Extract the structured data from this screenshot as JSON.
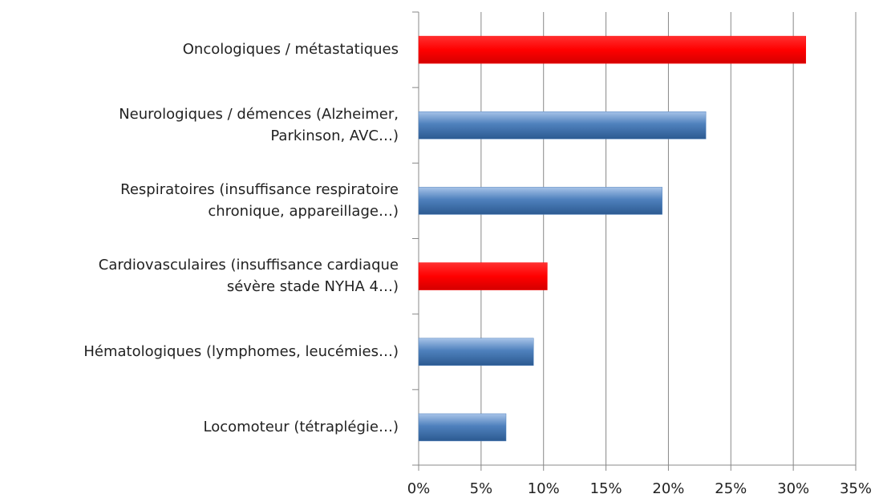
{
  "chart_data": {
    "type": "hbar",
    "categories": [
      [
        "Oncologiques / métastatiques"
      ],
      [
        "Neurologiques / démences (Alzheimer,",
        "Parkinson, AVC…)"
      ],
      [
        "Respiratoires (insuffisance respiratoire",
        "chronique, appareillage…)"
      ],
      [
        "Cardiovasculaires (insuffisance cardiaque",
        "sévère stade NYHA 4…)"
      ],
      [
        "Hématologiques (lymphomes, leucémies…)"
      ],
      [
        "Locomoteur (tétraplégie…)"
      ]
    ],
    "values": [
      31,
      23,
      19.5,
      10.3,
      9.2,
      7
    ],
    "colors": [
      "#ff0000",
      "#4f81bd",
      "#4f81bd",
      "#ff0000",
      "#4f81bd",
      "#4f81bd"
    ],
    "xlim": [
      0,
      35
    ],
    "xticks": [
      {
        "value": 0,
        "label": "0%"
      },
      {
        "value": 5,
        "label": "5%"
      },
      {
        "value": 10,
        "label": "10%"
      },
      {
        "value": 15,
        "label": "15%"
      },
      {
        "value": 20,
        "label": "20%"
      },
      {
        "value": 25,
        "label": "25%"
      },
      {
        "value": 30,
        "label": "30%"
      },
      {
        "value": 35,
        "label": "35%"
      }
    ],
    "grid": true
  }
}
